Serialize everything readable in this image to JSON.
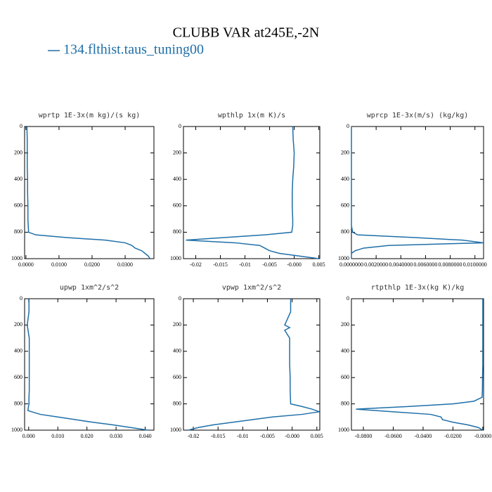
{
  "title": "CLUBB VAR at245E,-2N",
  "chart_data": [
    {
      "type": "line",
      "title": "wprtp  1E-3x(m kg)/(s kg)",
      "y": [
        0,
        100,
        200,
        300,
        400,
        500,
        600,
        700,
        750,
        800,
        820,
        840,
        860,
        880,
        900,
        920,
        940,
        960,
        980,
        1000
      ],
      "series": [
        {
          "name": "134.flthist.taus_tuning00",
          "color": "#1f6fa8",
          "values": [
            0.0003,
            0.0004,
            0.0004,
            0.0004,
            0.0005,
            0.0005,
            0.0006,
            0.0006,
            0.0007,
            0.0008,
            0.003,
            0.012,
            0.024,
            0.03,
            0.032,
            0.033,
            0.035,
            0.036,
            0.037,
            0.0375
          ]
        }
      ],
      "xlim": [
        -0.0004,
        0.0387
      ],
      "xticks": [
        {
          "value": 0,
          "label": "0.0000"
        },
        {
          "value": 0.01,
          "label": "0.0100"
        },
        {
          "value": 0.02,
          "label": "0.0200"
        },
        {
          "value": 0.03,
          "label": "0.0300"
        }
      ],
      "ylim": [
        1000,
        0
      ],
      "yticks": [
        0,
        200,
        400,
        600,
        800,
        1000
      ]
    },
    {
      "type": "line",
      "title": "wpthlp  1x(m K)/s",
      "y": [
        0,
        100,
        200,
        300,
        400,
        500,
        600,
        700,
        750,
        800,
        820,
        840,
        860,
        880,
        900,
        920,
        940,
        960,
        980,
        1000
      ],
      "series": [
        {
          "color": "#1f6fa8",
          "values": [
            -0.0003,
            -0.0002,
            0,
            -0.0001,
            -0.0003,
            -0.0004,
            -0.0004,
            -0.0003,
            -0.0003,
            -0.0005,
            -0.006,
            -0.014,
            -0.022,
            -0.012,
            -0.007,
            -0.006,
            -0.005,
            -0.003,
            0.001,
            0.005
          ]
        }
      ],
      "xlim": [
        -0.0225,
        0.0052
      ],
      "xticks": [
        -0.02,
        -0.015,
        -0.01,
        -0.005,
        {
          "value": 0,
          "label": "-0.000"
        },
        0.005
      ],
      "ylim": [
        1000,
        0
      ],
      "yticks": [
        0,
        200,
        400,
        600,
        800,
        1000
      ]
    },
    {
      "type": "line",
      "title": "wprcp  1E-3x(m/s) (kg/kg)",
      "y": [
        0,
        100,
        200,
        300,
        400,
        500,
        600,
        700,
        750,
        800,
        820,
        840,
        860,
        880,
        900,
        920,
        940,
        960,
        980,
        1000
      ],
      "series": [
        {
          "color": "#1f6fa8",
          "values": [
            0,
            0,
            0,
            0,
            0,
            0,
            0,
            0,
            0,
            0.0001,
            0.0005,
            0.005,
            0.009,
            0.0107,
            0.003,
            0.001,
            0.0003,
            0,
            0,
            0
          ]
        }
      ],
      "xlim": [
        0,
        0.0107
      ],
      "xticks": [
        {
          "value": 0,
          "label": "0.0000000"
        },
        {
          "value": 0.002,
          "label": "0.0020000"
        },
        {
          "value": 0.004,
          "label": "0.0040000"
        },
        {
          "value": 0.006,
          "label": "0.0060000"
        },
        {
          "value": 0.008,
          "label": "0.0080000"
        },
        {
          "value": 0.01,
          "label": "0.0100000"
        }
      ],
      "ylim": [
        1000,
        0
      ],
      "yticks": [
        0,
        200,
        400,
        600,
        800,
        1000
      ]
    },
    {
      "type": "line",
      "title": "upwp  1xm^2/s^2",
      "y": [
        0,
        100,
        200,
        300,
        400,
        500,
        600,
        700,
        750,
        800,
        850,
        860,
        880,
        900,
        920,
        940,
        960,
        980,
        1000
      ],
      "series": [
        {
          "color": "#1f6fa8",
          "values": [
            0.0001,
            0.0001,
            -0.0005,
            0.0002,
            0.0002,
            0.0002,
            0.0002,
            0.0002,
            0.0001,
            0.0001,
            -0.0003,
            0.001,
            0.004,
            0.01,
            0.016,
            0.022,
            0.029,
            0.035,
            0.041
          ]
        }
      ],
      "xlim": [
        -0.0014,
        0.043
      ],
      "xticks": [
        {
          "value": 0,
          "label": "0.000"
        },
        {
          "value": 0.01,
          "label": "0.010"
        },
        {
          "value": 0.02,
          "label": "0.020"
        },
        {
          "value": 0.03,
          "label": "0.030"
        },
        {
          "value": 0.04,
          "label": "0.040"
        }
      ],
      "ylim": [
        1000,
        0
      ],
      "yticks": [
        0,
        200,
        400,
        600,
        800,
        1000
      ]
    },
    {
      "type": "line",
      "title": "vpwp  1xm^2/s^2",
      "y": [
        0,
        100,
        200,
        220,
        240,
        300,
        400,
        500,
        600,
        700,
        800,
        820,
        840,
        860,
        880,
        900,
        920,
        940,
        960,
        980,
        1000
      ],
      "series": [
        {
          "color": "#1f6fa8",
          "values": [
            -0.0003,
            -0.0003,
            -0.0015,
            -0.0005,
            -0.0015,
            -0.0005,
            -0.0005,
            -0.0005,
            -0.0004,
            -0.0004,
            -0.0003,
            0.002,
            0.004,
            0.0055,
            0.002,
            -0.004,
            -0.008,
            -0.012,
            -0.016,
            -0.019,
            -0.021
          ]
        }
      ],
      "xlim": [
        -0.022,
        0.0056
      ],
      "xticks": [
        -0.02,
        -0.015,
        -0.01,
        -0.005,
        {
          "value": 0,
          "label": "-0.000"
        },
        0.005
      ],
      "ylim": [
        1000,
        0
      ],
      "yticks": [
        0,
        200,
        400,
        600,
        800,
        1000
      ]
    },
    {
      "type": "line",
      "title": "rtpthlp  1E-3x(kg K)/kg",
      "y": [
        0,
        100,
        200,
        300,
        400,
        500,
        600,
        700,
        750,
        780,
        800,
        820,
        840,
        860,
        880,
        900,
        920,
        940,
        960,
        980,
        1000
      ],
      "series": [
        {
          "color": "#1f6fa8",
          "values": [
            0,
            0,
            0,
            0,
            0,
            0,
            -0.0002,
            -0.0003,
            -0.0005,
            -0.006,
            -0.02,
            -0.05,
            -0.085,
            -0.06,
            -0.035,
            -0.028,
            -0.027,
            -0.02,
            -0.01,
            -0.003,
            0
          ]
        }
      ],
      "xlim": [
        -0.088,
        0.0005
      ],
      "xticks": [
        {
          "value": -0.08,
          "label": "-0.0800"
        },
        {
          "value": -0.06,
          "label": "-0.0600"
        },
        {
          "value": -0.04,
          "label": "-0.0400"
        },
        {
          "value": -0.02,
          "label": "-0.0200"
        },
        {
          "value": 0,
          "label": "-0.0000"
        }
      ],
      "ylim": [
        1000,
        0
      ],
      "yticks": [
        0,
        200,
        400,
        600,
        800,
        1000
      ]
    }
  ]
}
